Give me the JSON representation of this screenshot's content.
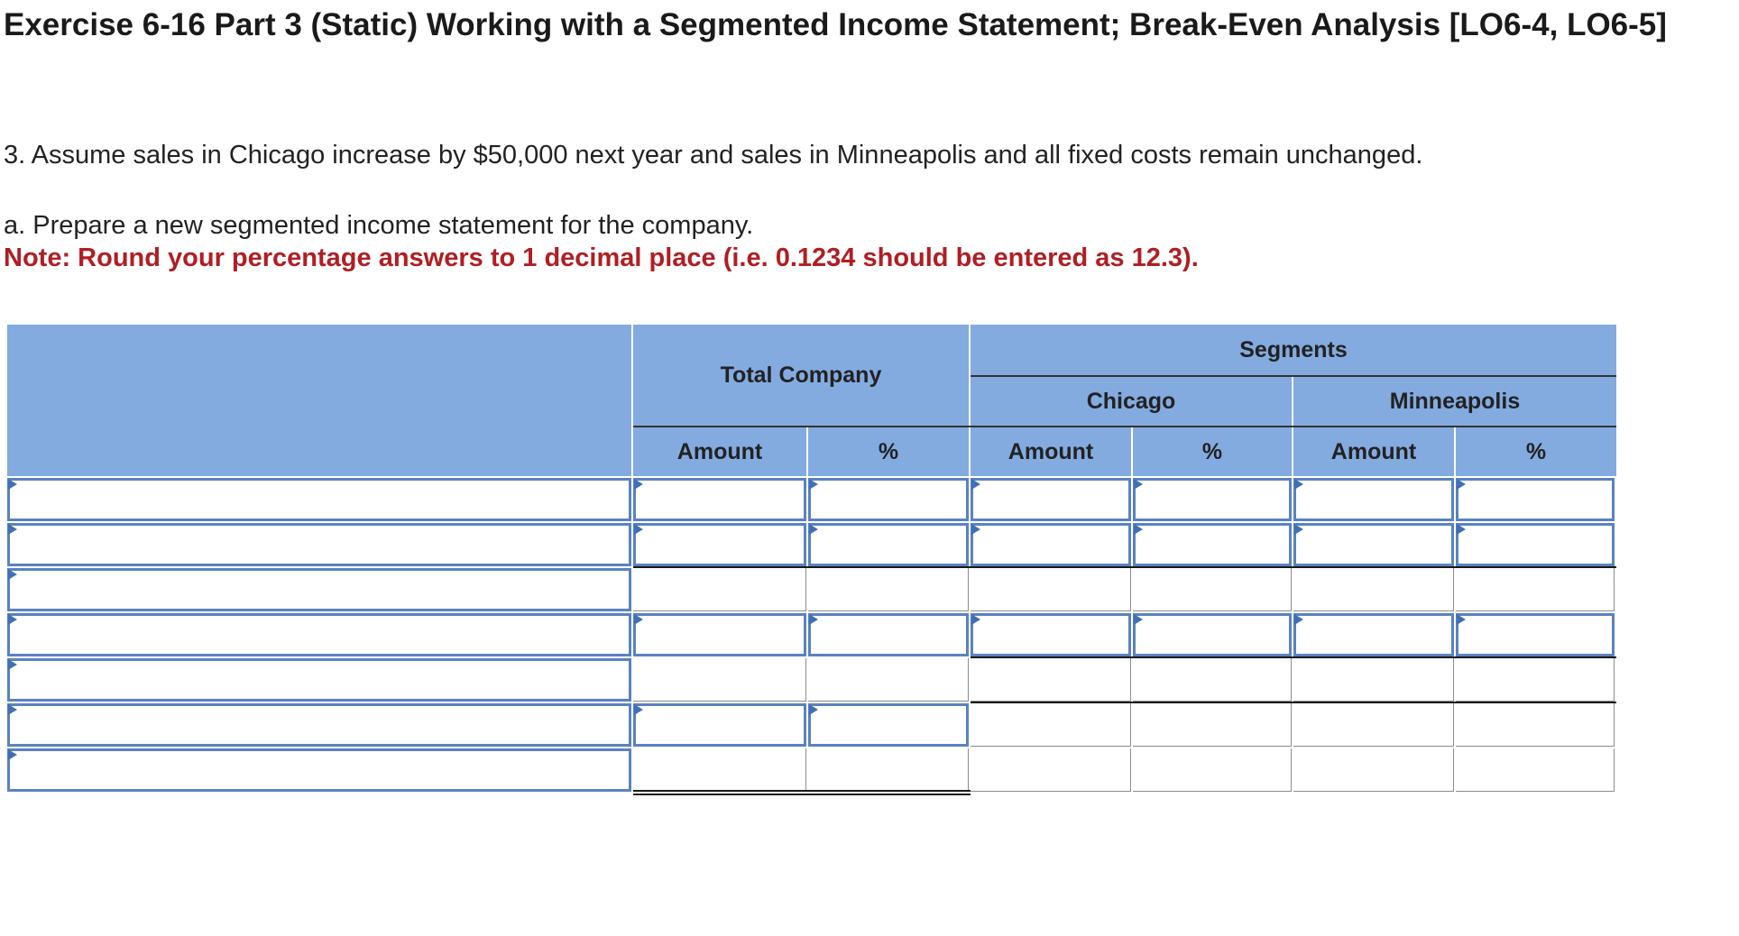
{
  "header": {
    "title": "Exercise 6-16 Part 3 (Static) Working with a Segmented Income Statement; Break-Even Analysis [LO6-4, LO6-5]"
  },
  "question": {
    "text": "3. Assume sales in Chicago increase by $50,000 next year and sales in Minneapolis and all fixed costs remain unchanged.",
    "part_a": "a. Prepare a new segmented income statement for the company.",
    "note": "Note: Round your percentage answers to 1 decimal place (i.e. 0.1234 should be entered as 12.3)."
  },
  "worksheet": {
    "total_company_label": "Total Company",
    "segments_label": "Segments",
    "chicago_label": "Chicago",
    "minneapolis_label": "Minneapolis",
    "columns": [
      "Amount",
      "%",
      "Amount",
      "%",
      "Amount",
      "%"
    ],
    "row_count": 7
  }
}
